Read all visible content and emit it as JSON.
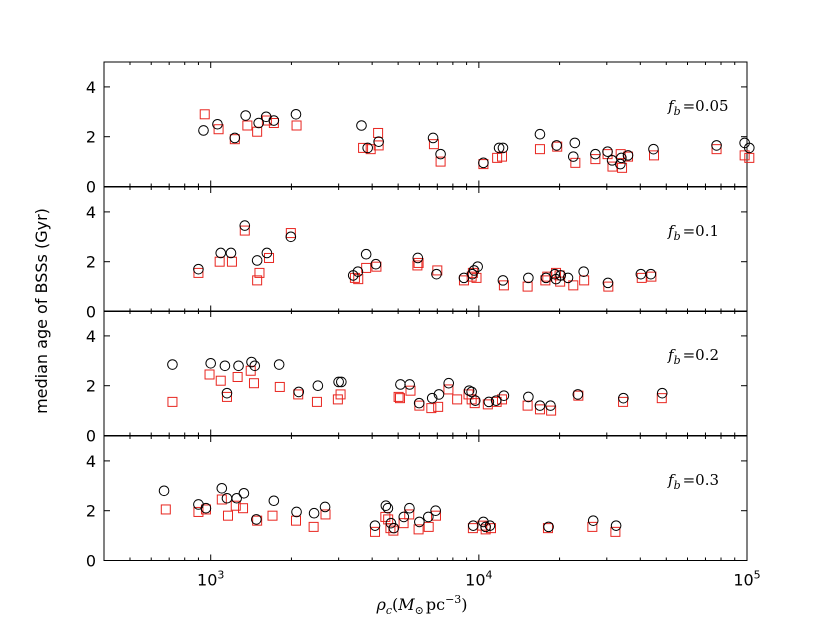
{
  "chart_data": {
    "type": "scatter",
    "ylabel": "median age of BSSs (Gyr)",
    "xlabel": "ρ_c (M_⊙ pc⁻³)",
    "xlabel_parts": {
      "var": "ρ",
      "sub": "c",
      "open": "(",
      "mass": "M",
      "sun": "⊙",
      "unit": "pc",
      "exp": "−3",
      "close": ")"
    },
    "xscale": "log",
    "xlim": [
      400,
      100000
    ],
    "ylim": [
      0,
      5
    ],
    "xticks": [
      {
        "value": 1000,
        "base": "10",
        "exp": "3"
      },
      {
        "value": 10000,
        "base": "10",
        "exp": "4"
      },
      {
        "value": 100000,
        "base": "10",
        "exp": "5"
      }
    ],
    "yticks": [
      0,
      2,
      4
    ],
    "colors": {
      "circle": "#000000",
      "square": "#e8251f"
    },
    "marker_legend": "circles (black) and squares (red) unlabeled",
    "panels": [
      {
        "label_var": "f",
        "label_sub": "b",
        "label_eq": "=0.05",
        "circles": [
          [
            940,
            2.25
          ],
          [
            1060,
            2.5
          ],
          [
            1230,
            1.95
          ],
          [
            1350,
            2.85
          ],
          [
            1510,
            2.55
          ],
          [
            1610,
            2.8
          ],
          [
            1720,
            2.65
          ],
          [
            2080,
            2.9
          ],
          [
            3650,
            2.45
          ],
          [
            3850,
            1.55
          ],
          [
            4230,
            1.8
          ],
          [
            6750,
            1.95
          ],
          [
            7200,
            1.3
          ],
          [
            10400,
            0.95
          ],
          [
            11900,
            1.55
          ],
          [
            12300,
            1.55
          ],
          [
            16900,
            2.1
          ],
          [
            19500,
            1.65
          ],
          [
            22500,
            1.2
          ],
          [
            22800,
            1.75
          ],
          [
            27200,
            1.3
          ],
          [
            30200,
            1.4
          ],
          [
            31400,
            1.05
          ],
          [
            33700,
            0.9
          ],
          [
            34000,
            1.15
          ],
          [
            36000,
            1.25
          ],
          [
            44800,
            1.5
          ],
          [
            77000,
            1.65
          ],
          [
            98000,
            1.75
          ],
          [
            102000,
            1.55
          ]
        ],
        "squares": [
          [
            950,
            2.9
          ],
          [
            1070,
            2.3
          ],
          [
            1230,
            1.9
          ],
          [
            1370,
            2.45
          ],
          [
            1490,
            2.2
          ],
          [
            1620,
            2.65
          ],
          [
            1720,
            2.55
          ],
          [
            2090,
            2.45
          ],
          [
            3700,
            1.55
          ],
          [
            3950,
            1.5
          ],
          [
            4210,
            2.15
          ],
          [
            4230,
            1.65
          ],
          [
            6800,
            1.7
          ],
          [
            7200,
            1.0
          ],
          [
            10400,
            0.9
          ],
          [
            11700,
            1.15
          ],
          [
            12200,
            1.2
          ],
          [
            16900,
            1.5
          ],
          [
            19600,
            1.6
          ],
          [
            22900,
            0.95
          ],
          [
            27200,
            1.1
          ],
          [
            30200,
            1.3
          ],
          [
            31500,
            0.8
          ],
          [
            33800,
            1.3
          ],
          [
            34200,
            0.75
          ],
          [
            36000,
            1.2
          ],
          [
            45000,
            1.25
          ],
          [
            77000,
            1.5
          ],
          [
            98000,
            1.25
          ],
          [
            102000,
            1.15
          ]
        ]
      },
      {
        "label_var": "f",
        "label_sub": "b",
        "label_eq": "=0.1",
        "circles": [
          [
            900,
            1.7
          ],
          [
            1090,
            2.35
          ],
          [
            1190,
            2.35
          ],
          [
            1340,
            3.45
          ],
          [
            1490,
            2.05
          ],
          [
            1620,
            2.35
          ],
          [
            1990,
            3.0
          ],
          [
            3400,
            1.45
          ],
          [
            3540,
            1.6
          ],
          [
            3800,
            2.3
          ],
          [
            4130,
            1.9
          ],
          [
            5920,
            2.15
          ],
          [
            6950,
            1.5
          ],
          [
            8800,
            1.35
          ],
          [
            9450,
            1.5
          ],
          [
            9600,
            1.65
          ],
          [
            9900,
            1.8
          ],
          [
            12300,
            1.25
          ],
          [
            15300,
            1.35
          ],
          [
            17800,
            1.35
          ],
          [
            19200,
            1.5
          ],
          [
            19400,
            1.3
          ],
          [
            20200,
            1.45
          ],
          [
            21500,
            1.35
          ],
          [
            24600,
            1.6
          ],
          [
            30300,
            1.15
          ],
          [
            40200,
            1.5
          ],
          [
            43800,
            1.5
          ]
        ],
        "squares": [
          [
            900,
            1.55
          ],
          [
            1080,
            2.0
          ],
          [
            1200,
            2.0
          ],
          [
            1340,
            3.25
          ],
          [
            1490,
            1.25
          ],
          [
            1520,
            1.55
          ],
          [
            1650,
            2.15
          ],
          [
            1990,
            3.15
          ],
          [
            3450,
            1.35
          ],
          [
            3550,
            1.3
          ],
          [
            3800,
            1.75
          ],
          [
            4150,
            1.8
          ],
          [
            5900,
            1.85
          ],
          [
            5960,
            1.95
          ],
          [
            7000,
            1.65
          ],
          [
            8800,
            1.25
          ],
          [
            9400,
            1.4
          ],
          [
            9500,
            1.55
          ],
          [
            9800,
            1.35
          ],
          [
            12400,
            1.05
          ],
          [
            15200,
            1.0
          ],
          [
            17700,
            1.25
          ],
          [
            18000,
            1.4
          ],
          [
            19400,
            1.55
          ],
          [
            20000,
            1.45
          ],
          [
            20100,
            1.2
          ],
          [
            22500,
            1.05
          ],
          [
            24700,
            1.25
          ],
          [
            30400,
            1.0
          ],
          [
            40500,
            1.35
          ],
          [
            44000,
            1.4
          ]
        ]
      },
      {
        "label_var": "f",
        "label_sub": "b",
        "label_eq": "=0.2",
        "circles": [
          [
            720,
            2.85
          ],
          [
            1000,
            2.9
          ],
          [
            1130,
            2.8
          ],
          [
            1150,
            1.7
          ],
          [
            1270,
            2.8
          ],
          [
            1420,
            2.95
          ],
          [
            1460,
            2.8
          ],
          [
            1800,
            2.85
          ],
          [
            2130,
            1.75
          ],
          [
            2510,
            2.0
          ],
          [
            3000,
            2.15
          ],
          [
            3070,
            2.15
          ],
          [
            5100,
            2.05
          ],
          [
            5520,
            2.05
          ],
          [
            5990,
            1.3
          ],
          [
            6700,
            1.5
          ],
          [
            7100,
            1.65
          ],
          [
            7720,
            2.1
          ],
          [
            9200,
            1.8
          ],
          [
            9400,
            1.75
          ],
          [
            9700,
            1.4
          ],
          [
            10900,
            1.35
          ],
          [
            11600,
            1.4
          ],
          [
            12400,
            1.6
          ],
          [
            15300,
            1.55
          ],
          [
            16900,
            1.2
          ],
          [
            18500,
            1.2
          ],
          [
            23400,
            1.65
          ],
          [
            34600,
            1.5
          ],
          [
            48300,
            1.7
          ]
        ],
        "squares": [
          [
            720,
            1.35
          ],
          [
            990,
            2.45
          ],
          [
            1090,
            2.2
          ],
          [
            1150,
            1.55
          ],
          [
            1260,
            2.35
          ],
          [
            1410,
            2.6
          ],
          [
            1450,
            2.1
          ],
          [
            1810,
            1.95
          ],
          [
            2120,
            1.65
          ],
          [
            2490,
            1.35
          ],
          [
            2980,
            1.45
          ],
          [
            3050,
            1.65
          ],
          [
            5020,
            1.55
          ],
          [
            5080,
            1.5
          ],
          [
            5560,
            1.8
          ],
          [
            6000,
            1.2
          ],
          [
            6650,
            1.1
          ],
          [
            7050,
            1.15
          ],
          [
            7700,
            1.85
          ],
          [
            8300,
            1.45
          ],
          [
            9150,
            1.65
          ],
          [
            9400,
            1.45
          ],
          [
            9650,
            1.3
          ],
          [
            10800,
            1.25
          ],
          [
            11650,
            1.35
          ],
          [
            12200,
            1.45
          ],
          [
            15200,
            1.2
          ],
          [
            16900,
            1.05
          ],
          [
            18600,
            1.0
          ],
          [
            23500,
            1.6
          ],
          [
            34500,
            1.35
          ],
          [
            48100,
            1.5
          ]
        ]
      },
      {
        "label_var": "f",
        "label_sub": "b",
        "label_eq": "=0.3",
        "circles": [
          [
            670,
            2.8
          ],
          [
            900,
            2.25
          ],
          [
            960,
            2.1
          ],
          [
            1100,
            2.9
          ],
          [
            1150,
            2.5
          ],
          [
            1250,
            2.5
          ],
          [
            1330,
            2.7
          ],
          [
            1480,
            1.65
          ],
          [
            1720,
            2.4
          ],
          [
            2090,
            1.95
          ],
          [
            2430,
            1.9
          ],
          [
            2670,
            2.15
          ],
          [
            4100,
            1.4
          ],
          [
            4500,
            2.2
          ],
          [
            4580,
            2.1
          ],
          [
            4700,
            1.5
          ],
          [
            4820,
            1.3
          ],
          [
            5250,
            1.75
          ],
          [
            5510,
            2.1
          ],
          [
            6000,
            1.55
          ],
          [
            6480,
            1.75
          ],
          [
            6900,
            2.0
          ],
          [
            9530,
            1.4
          ],
          [
            10400,
            1.55
          ],
          [
            10600,
            1.35
          ],
          [
            11000,
            1.4
          ],
          [
            18200,
            1.35
          ],
          [
            26700,
            1.6
          ],
          [
            32500,
            1.4
          ]
        ],
        "squares": [
          [
            680,
            2.05
          ],
          [
            900,
            1.95
          ],
          [
            960,
            2.05
          ],
          [
            1100,
            2.45
          ],
          [
            1160,
            1.8
          ],
          [
            1240,
            2.2
          ],
          [
            1320,
            2.1
          ],
          [
            1490,
            1.6
          ],
          [
            1700,
            1.8
          ],
          [
            2080,
            1.6
          ],
          [
            2420,
            1.35
          ],
          [
            2680,
            1.85
          ],
          [
            4100,
            1.15
          ],
          [
            4480,
            1.75
          ],
          [
            4590,
            1.65
          ],
          [
            4680,
            1.3
          ],
          [
            4800,
            1.2
          ],
          [
            5240,
            1.5
          ],
          [
            5500,
            1.85
          ],
          [
            5960,
            1.25
          ],
          [
            6500,
            1.35
          ],
          [
            6920,
            1.8
          ],
          [
            9500,
            1.3
          ],
          [
            10300,
            1.4
          ],
          [
            10600,
            1.25
          ],
          [
            11100,
            1.3
          ],
          [
            18100,
            1.3
          ],
          [
            26500,
            1.35
          ],
          [
            32300,
            1.15
          ]
        ]
      }
    ]
  }
}
